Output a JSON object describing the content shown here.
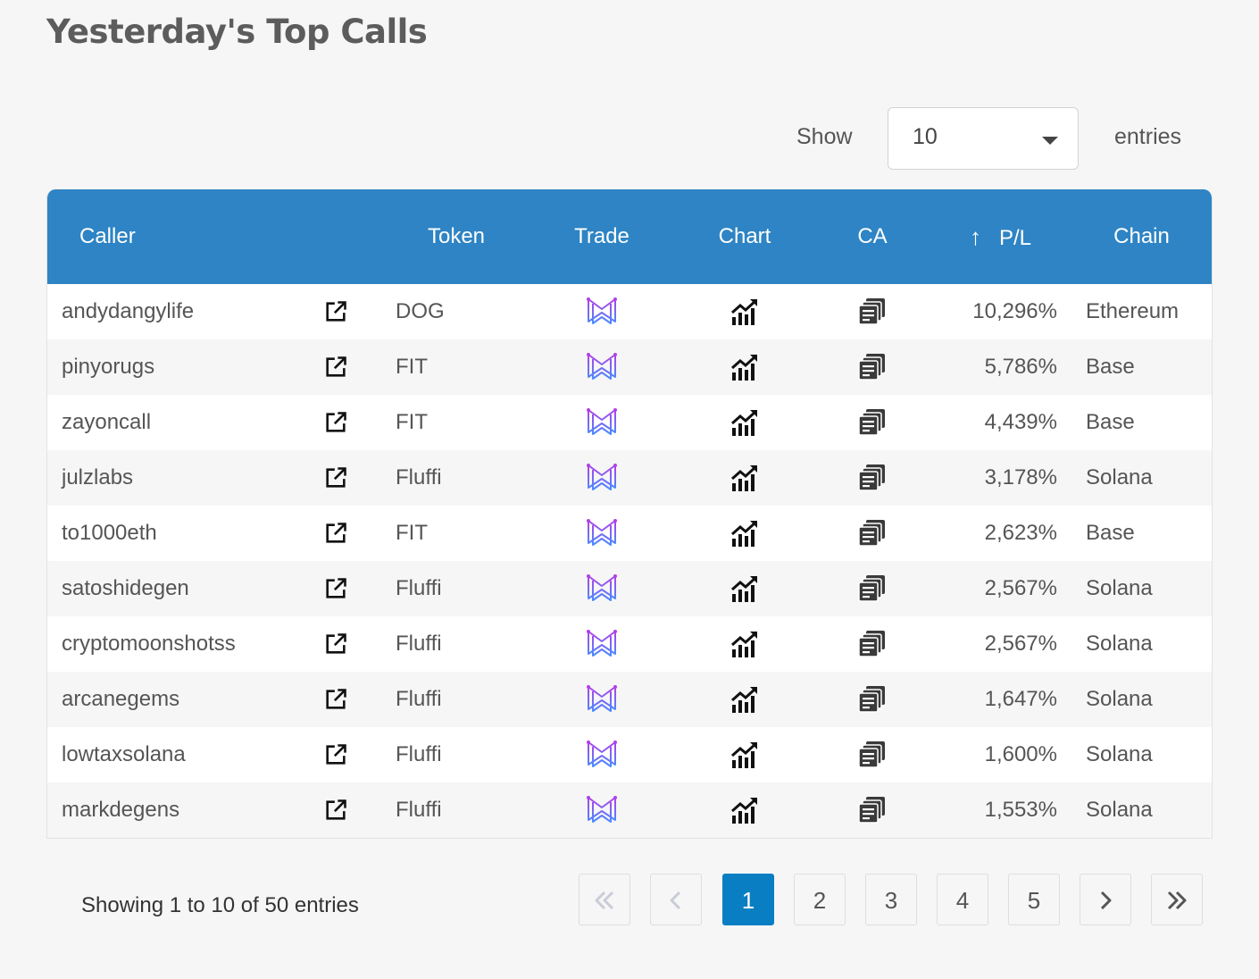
{
  "page": {
    "title": "Yesterday's Top Calls"
  },
  "length_menu": {
    "show_label": "Show",
    "selected": "10",
    "entries_label": "entries"
  },
  "table": {
    "columns": {
      "caller": "Caller",
      "token": "Token",
      "trade": "Trade",
      "chart": "Chart",
      "ca": "CA",
      "pl": "P/L",
      "chain": "Chain"
    },
    "sort_arrow": "↑",
    "rows": [
      {
        "caller": "andydangylife",
        "token": "DOG",
        "pl": "10,296%",
        "chain": "Ethereum"
      },
      {
        "caller": "pinyorugs",
        "token": "FIT",
        "pl": "5,786%",
        "chain": "Base"
      },
      {
        "caller": "zayoncall",
        "token": "FIT",
        "pl": "4,439%",
        "chain": "Base"
      },
      {
        "caller": "julzlabs",
        "token": "Fluffi",
        "pl": "3,178%",
        "chain": "Solana"
      },
      {
        "caller": "to1000eth",
        "token": "FIT",
        "pl": "2,623%",
        "chain": "Base"
      },
      {
        "caller": "satoshidegen",
        "token": "Fluffi",
        "pl": "2,567%",
        "chain": "Solana"
      },
      {
        "caller": "cryptomoonshotss",
        "token": "Fluffi",
        "pl": "2,567%",
        "chain": "Solana"
      },
      {
        "caller": "arcanegems",
        "token": "Fluffi",
        "pl": "1,647%",
        "chain": "Solana"
      },
      {
        "caller": "lowtaxsolana",
        "token": "Fluffi",
        "pl": "1,600%",
        "chain": "Solana"
      },
      {
        "caller": "markdegens",
        "token": "Fluffi",
        "pl": "1,553%",
        "chain": "Solana"
      }
    ],
    "icons": {
      "external": "external-link-icon",
      "trade": "trade-logo-icon",
      "chart": "chart-icon",
      "ca": "copy-icon"
    }
  },
  "info": "Showing 1 to 10 of 50 entries",
  "pagination": {
    "current": "1",
    "pages": [
      "1",
      "2",
      "3",
      "4",
      "5"
    ],
    "icons": {
      "first": "double-chevron-left-icon",
      "prev": "chevron-left-icon",
      "next": "chevron-right-icon",
      "last": "double-chevron-right-icon"
    }
  },
  "colors": {
    "header_bg": "#2e84c4",
    "active_page": "#0a7ec2",
    "background": "#f6f6f6",
    "trade_icon": "#9b46e0"
  }
}
